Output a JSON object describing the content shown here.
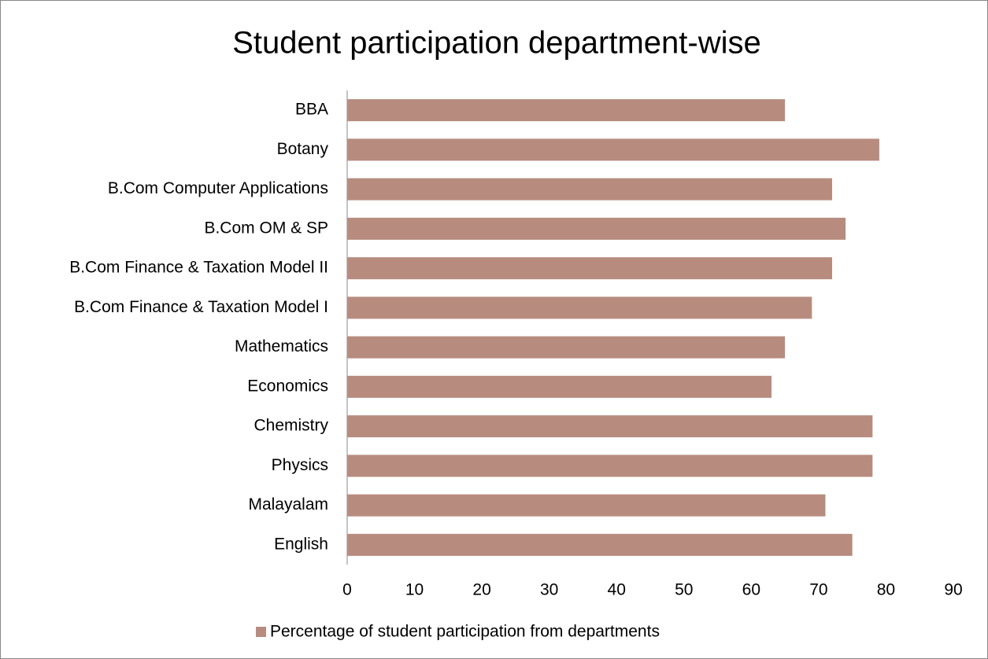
{
  "chart_data": {
    "type": "bar",
    "orientation": "horizontal",
    "title": "Student participation department-wise",
    "categories": [
      "BBA",
      "Botany",
      "B.Com Computer Applications",
      "B.Com OM & SP",
      "B.Com Finance & Taxation Model II",
      "B.Com Finance & Taxation Model I",
      "Mathematics",
      "Economics",
      "Chemistry",
      "Physics",
      "Malayalam",
      "English"
    ],
    "series": [
      {
        "name": "Percentage of student participation from departments",
        "color": "#b78c7f",
        "values": [
          65,
          79,
          72,
          74,
          72,
          69,
          65,
          63,
          78,
          78,
          71,
          75
        ]
      }
    ],
    "xlim": [
      0,
      90
    ],
    "xticks": [
      0,
      10,
      20,
      30,
      40,
      50,
      60,
      70,
      80,
      90
    ],
    "grid": false,
    "legend": "bottom"
  }
}
